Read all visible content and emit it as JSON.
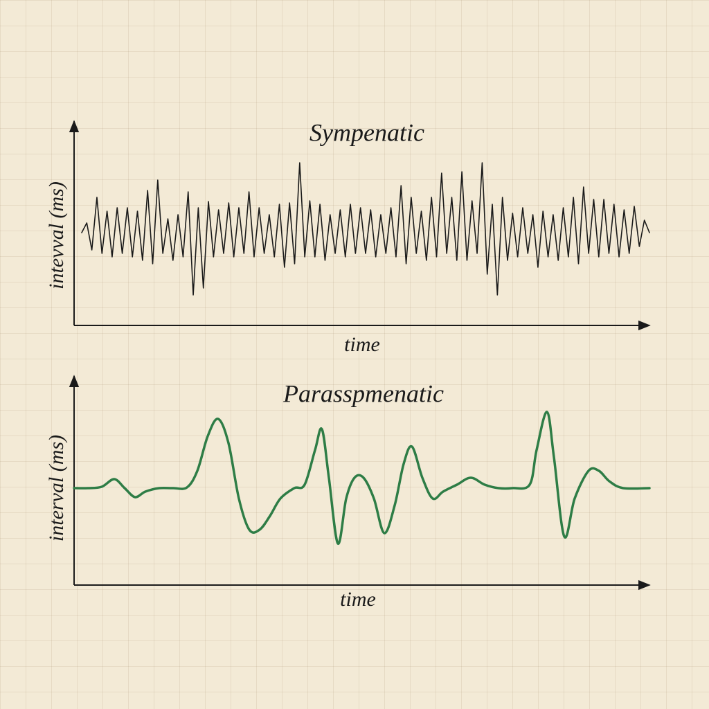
{
  "chart_data": [
    {
      "type": "line",
      "title": "Sympenatic",
      "x_label": "time",
      "y_label": "intevval (ms)",
      "color": "#1a1a1a",
      "ylim": [
        -134,
        156
      ],
      "values": [
        0,
        14,
        -25,
        51,
        -30,
        31,
        -35,
        36,
        -30,
        36,
        -35,
        31,
        -40,
        61,
        -45,
        76,
        -30,
        20,
        -40,
        26,
        -35,
        59,
        -90,
        36,
        -80,
        45,
        -35,
        33,
        -30,
        43,
        -35,
        36,
        -30,
        59,
        -35,
        36,
        -30,
        26,
        -35,
        41,
        -50,
        43,
        -45,
        101,
        -35,
        46,
        -35,
        41,
        -40,
        26,
        -30,
        33,
        -35,
        41,
        -30,
        36,
        -30,
        33,
        -35,
        26,
        -30,
        36,
        -35,
        68,
        -45,
        51,
        -30,
        31,
        -40,
        51,
        -35,
        86,
        -30,
        51,
        -40,
        88,
        -40,
        46,
        -30,
        101,
        -60,
        41,
        -90,
        51,
        -40,
        28,
        -35,
        36,
        -30,
        26,
        -50,
        31,
        -35,
        26,
        -40,
        36,
        -35,
        51,
        -45,
        66,
        -30,
        48,
        -35,
        48,
        -30,
        41,
        -35,
        33,
        -30,
        38,
        -20,
        18,
        0
      ]
    },
    {
      "type": "line",
      "title": "Parasspmenatic",
      "x_label": "time",
      "y_label": "interval (ms)",
      "color": "#2e7d46",
      "smooth": true,
      "xlim": [
        0,
        831
      ],
      "ylim": [
        -140,
        157
      ],
      "x": [
        0,
        20,
        40,
        58,
        73,
        88,
        103,
        123,
        143,
        163,
        178,
        193,
        208,
        223,
        238,
        253,
        268,
        283,
        298,
        318,
        333,
        348,
        358,
        368,
        381,
        393,
        405,
        418,
        433,
        448,
        463,
        476,
        488,
        503,
        518,
        533,
        553,
        573,
        593,
        613,
        633,
        658,
        668,
        683,
        693,
        708,
        723,
        743,
        758,
        773,
        793,
        831
      ],
      "values": [
        0,
        0,
        2,
        13,
        0,
        -13,
        -5,
        0,
        0,
        1,
        25,
        75,
        100,
        65,
        -15,
        -60,
        -60,
        -40,
        -15,
        0,
        5,
        55,
        85,
        15,
        -80,
        -15,
        15,
        15,
        -15,
        -65,
        -25,
        35,
        60,
        15,
        -15,
        -5,
        5,
        15,
        5,
        0,
        0,
        5,
        55,
        110,
        45,
        -70,
        -15,
        25,
        25,
        10,
        0,
        0
      ]
    }
  ]
}
